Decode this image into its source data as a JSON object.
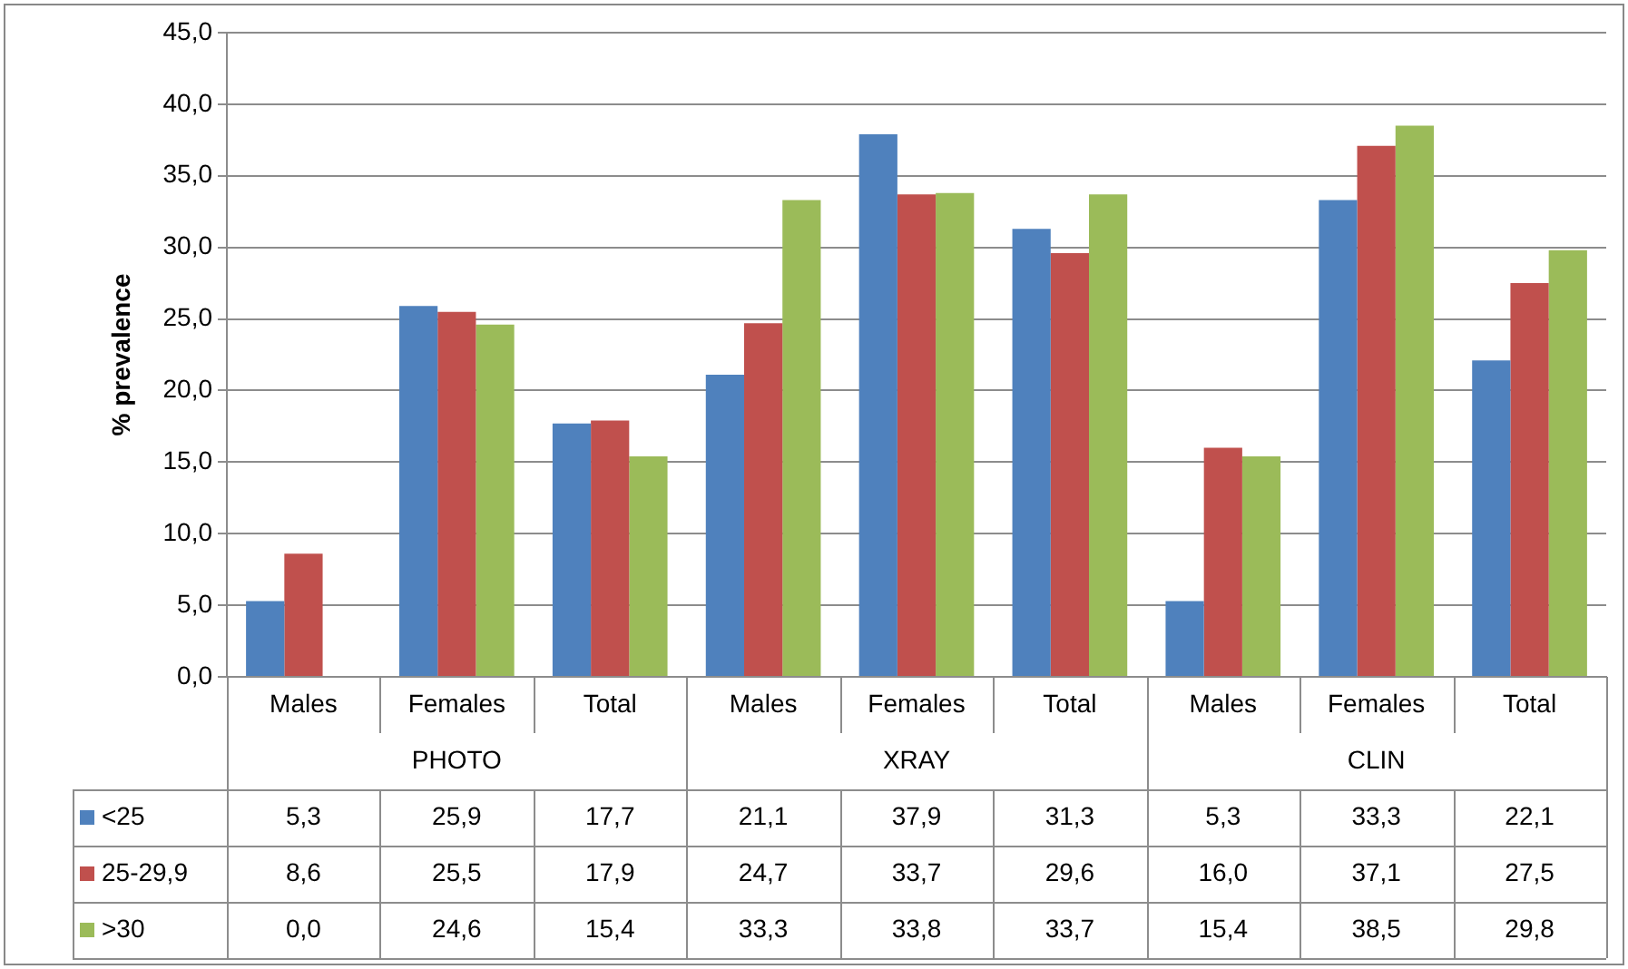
{
  "chart_data": {
    "type": "bar",
    "ylabel": "% prevalence",
    "categories": [
      "Males",
      "Females",
      "Total",
      "Males",
      "Females",
      "Total",
      "Males",
      "Females",
      "Total"
    ],
    "annotations": [
      "PHOTO",
      "XRAY",
      "CLIN"
    ],
    "series": [
      {
        "name": "<25",
        "color": "#4f81bd",
        "values": [
          5.3,
          25.9,
          17.7,
          21.1,
          37.9,
          31.3,
          5.3,
          33.3,
          22.1
        ],
        "value_labels": [
          "5,3",
          "25,9",
          "17,7",
          "21,1",
          "37,9",
          "31,3",
          "5,3",
          "33,3",
          "22,1"
        ]
      },
      {
        "name": "25-29,9",
        "color": "#c0504d",
        "values": [
          8.6,
          25.5,
          17.9,
          24.7,
          33.7,
          29.6,
          16.0,
          37.1,
          27.5
        ],
        "value_labels": [
          "8,6",
          "25,5",
          "17,9",
          "24,7",
          "33,7",
          "29,6",
          "16,0",
          "37,1",
          "27,5"
        ]
      },
      {
        "name": ">30",
        "color": "#9bbb59",
        "values": [
          0.0,
          24.6,
          15.4,
          33.3,
          33.8,
          33.7,
          15.4,
          38.5,
          29.8
        ],
        "value_labels": [
          "0,0",
          "24,6",
          "15,4",
          "33,3",
          "33,8",
          "33,7",
          "15,4",
          "38,5",
          "29,8"
        ]
      }
    ],
    "ylim": [
      0,
      45
    ],
    "yticks": [
      {
        "value": 0,
        "label": "0,0"
      },
      {
        "value": 5,
        "label": "5,0"
      },
      {
        "value": 10,
        "label": "10,0"
      },
      {
        "value": 15,
        "label": "15,0"
      },
      {
        "value": 20,
        "label": "20,0"
      },
      {
        "value": 25,
        "label": "25,0"
      },
      {
        "value": 30,
        "label": "30,0"
      },
      {
        "value": 35,
        "label": "35,0"
      },
      {
        "value": 40,
        "label": "40,0"
      },
      {
        "value": 45,
        "label": "45,0"
      }
    ],
    "grid": "y",
    "legend": "bottom"
  }
}
